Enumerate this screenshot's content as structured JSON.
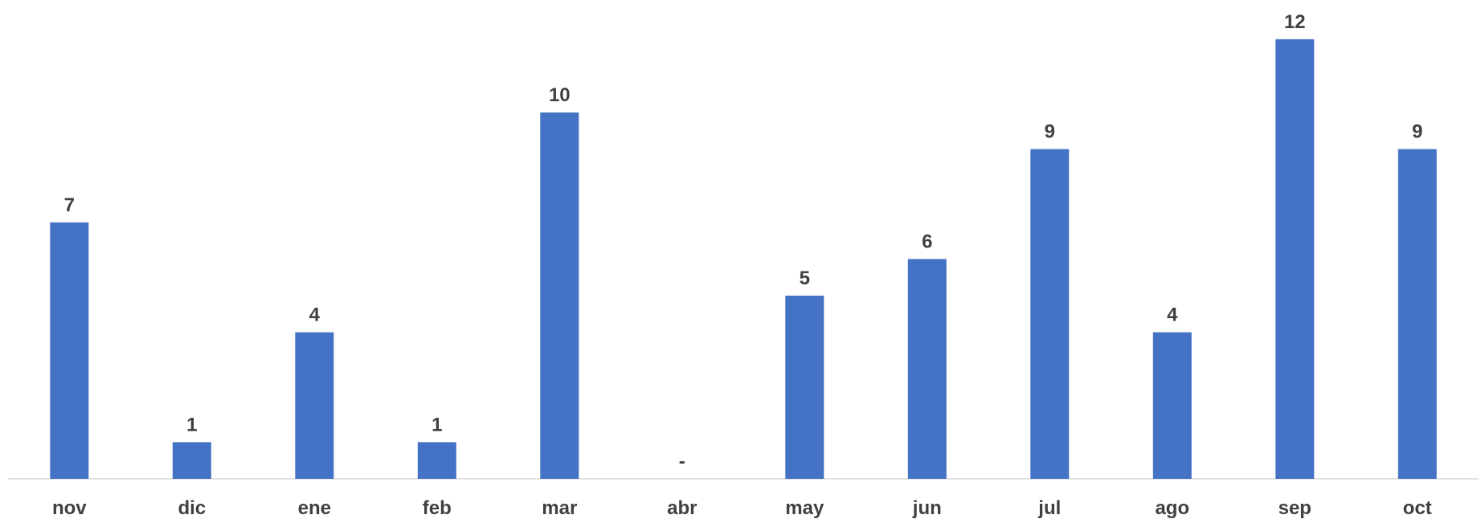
{
  "chart_data": {
    "type": "bar",
    "title": "",
    "xlabel": "",
    "ylabel": "",
    "categories": [
      "nov",
      "dic",
      "ene",
      "feb",
      "mar",
      "abr",
      "may",
      "jun",
      "jul",
      "ago",
      "sep",
      "oct"
    ],
    "values": [
      7,
      1,
      4,
      1,
      10,
      0,
      5,
      6,
      9,
      4,
      12,
      9
    ],
    "data_labels": [
      "7",
      "1",
      "4",
      "1",
      "10",
      "-",
      "5",
      "6",
      "9",
      "4",
      "12",
      "9"
    ],
    "ylim": [
      0,
      12
    ],
    "grid": false,
    "legend": "none",
    "y_axis_visible": false,
    "colors": {
      "bar": "#4472C4",
      "axis_line": "#D9D9D9",
      "text": "#404040"
    }
  }
}
